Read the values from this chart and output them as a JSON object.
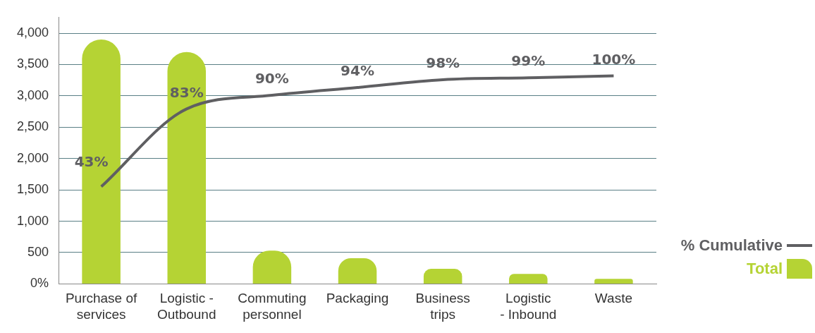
{
  "chart_data": {
    "type": "bar",
    "categories": [
      "Purchase of services",
      "Logistic - Outbound",
      "Commuting personnel",
      "Packaging",
      "Business trips",
      "Logistic - Inbound",
      "Waste"
    ],
    "series": [
      {
        "name": "Total",
        "color": "#b5d334",
        "values": [
          3900,
          3700,
          530,
          410,
          240,
          160,
          80
        ]
      },
      {
        "name": "% Cumulative",
        "type": "line",
        "axis": "y2",
        "color": "#5f5f62",
        "values": [
          43,
          83,
          90,
          94,
          98,
          99,
          100
        ],
        "value_labels": [
          "43%",
          "83%",
          "90%",
          "94%",
          "98%",
          "99%",
          "100%"
        ]
      }
    ],
    "ylim": [
      0,
      4250
    ],
    "yticks": [
      {
        "value": 0,
        "label": "0%"
      },
      {
        "value": 500,
        "label": "500"
      },
      {
        "value": 1000,
        "label": "1,000"
      },
      {
        "value": 1500,
        "label": "1,500"
      },
      {
        "value": 2000,
        "label": "2,000"
      },
      {
        "value": 2500,
        "label": "2,500"
      },
      {
        "value": 3000,
        "label": "3,000"
      },
      {
        "value": 3500,
        "label": "3,500"
      },
      {
        "value": 4000,
        "label": "4,000"
      }
    ],
    "y2lim": [
      -7,
      130
    ],
    "grid": "y",
    "legend": "right",
    "marker": "none"
  }
}
